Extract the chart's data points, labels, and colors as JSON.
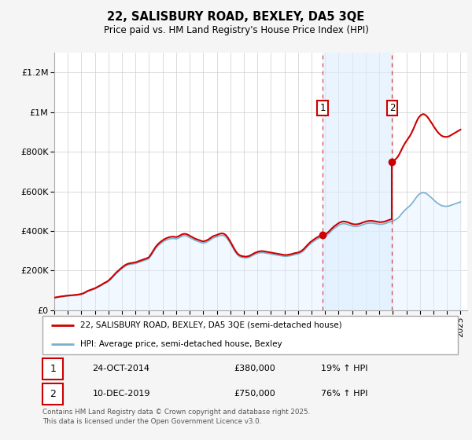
{
  "title": "22, SALISBURY ROAD, BEXLEY, DA5 3QE",
  "subtitle": "Price paid vs. HM Land Registry's House Price Index (HPI)",
  "background_color": "#f5f5f5",
  "plot_background_color": "#ffffff",
  "grid_color": "#cccccc",
  "ylim": [
    0,
    1300000
  ],
  "xlim_start": 1995.0,
  "xlim_end": 2025.5,
  "yticks": [
    0,
    200000,
    400000,
    600000,
    800000,
    1000000,
    1200000
  ],
  "ytick_labels": [
    "£0",
    "£200K",
    "£400K",
    "£600K",
    "£800K",
    "£1M",
    "£1.2M"
  ],
  "xtick_years": [
    1995,
    1996,
    1997,
    1998,
    1999,
    2000,
    2001,
    2002,
    2003,
    2004,
    2005,
    2006,
    2007,
    2008,
    2009,
    2010,
    2011,
    2012,
    2013,
    2014,
    2015,
    2016,
    2017,
    2018,
    2019,
    2020,
    2021,
    2022,
    2023,
    2024,
    2025
  ],
  "sale1_date": 2014.82,
  "sale1_price": 380000,
  "sale2_date": 2019.95,
  "sale2_price": 750000,
  "sale1_date_str": "24-OCT-2014",
  "sale2_date_str": "10-DEC-2019",
  "sale1_price_str": "£380,000",
  "sale2_price_str": "£750,000",
  "sale1_hpi_pct": "19% ↑ HPI",
  "sale2_hpi_pct": "76% ↑ HPI",
  "red_color": "#cc0000",
  "blue_color": "#7aafcf",
  "blue_fill_color": "#ddeeff",
  "legend_label1": "22, SALISBURY ROAD, BEXLEY, DA5 3QE (semi-detached house)",
  "legend_label2": "HPI: Average price, semi-detached house, Bexley",
  "footer_text": "Contains HM Land Registry data © Crown copyright and database right 2025.\nThis data is licensed under the Open Government Licence v3.0.",
  "hpi_monthly_years": [
    1995.0,
    1995.083,
    1995.167,
    1995.25,
    1995.333,
    1995.417,
    1995.5,
    1995.583,
    1995.667,
    1995.75,
    1995.833,
    1995.917,
    1996.0,
    1996.083,
    1996.167,
    1996.25,
    1996.333,
    1996.417,
    1996.5,
    1996.583,
    1996.667,
    1996.75,
    1996.833,
    1996.917,
    1997.0,
    1997.083,
    1997.167,
    1997.25,
    1997.333,
    1997.417,
    1997.5,
    1997.583,
    1997.667,
    1997.75,
    1997.833,
    1997.917,
    1998.0,
    1998.083,
    1998.167,
    1998.25,
    1998.333,
    1998.417,
    1998.5,
    1998.583,
    1998.667,
    1998.75,
    1998.833,
    1998.917,
    1999.0,
    1999.083,
    1999.167,
    1999.25,
    1999.333,
    1999.417,
    1999.5,
    1999.583,
    1999.667,
    1999.75,
    1999.833,
    1999.917,
    2000.0,
    2000.083,
    2000.167,
    2000.25,
    2000.333,
    2000.417,
    2000.5,
    2000.583,
    2000.667,
    2000.75,
    2000.833,
    2000.917,
    2001.0,
    2001.083,
    2001.167,
    2001.25,
    2001.333,
    2001.417,
    2001.5,
    2001.583,
    2001.667,
    2001.75,
    2001.833,
    2001.917,
    2002.0,
    2002.083,
    2002.167,
    2002.25,
    2002.333,
    2002.417,
    2002.5,
    2002.583,
    2002.667,
    2002.75,
    2002.833,
    2002.917,
    2003.0,
    2003.083,
    2003.167,
    2003.25,
    2003.333,
    2003.417,
    2003.5,
    2003.583,
    2003.667,
    2003.75,
    2003.833,
    2003.917,
    2004.0,
    2004.083,
    2004.167,
    2004.25,
    2004.333,
    2004.417,
    2004.5,
    2004.583,
    2004.667,
    2004.75,
    2004.833,
    2004.917,
    2005.0,
    2005.083,
    2005.167,
    2005.25,
    2005.333,
    2005.417,
    2005.5,
    2005.583,
    2005.667,
    2005.75,
    2005.833,
    2005.917,
    2006.0,
    2006.083,
    2006.167,
    2006.25,
    2006.333,
    2006.417,
    2006.5,
    2006.583,
    2006.667,
    2006.75,
    2006.833,
    2006.917,
    2007.0,
    2007.083,
    2007.167,
    2007.25,
    2007.333,
    2007.417,
    2007.5,
    2007.583,
    2007.667,
    2007.75,
    2007.833,
    2007.917,
    2008.0,
    2008.083,
    2008.167,
    2008.25,
    2008.333,
    2008.417,
    2008.5,
    2008.583,
    2008.667,
    2008.75,
    2008.833,
    2008.917,
    2009.0,
    2009.083,
    2009.167,
    2009.25,
    2009.333,
    2009.417,
    2009.5,
    2009.583,
    2009.667,
    2009.75,
    2009.833,
    2009.917,
    2010.0,
    2010.083,
    2010.167,
    2010.25,
    2010.333,
    2010.417,
    2010.5,
    2010.583,
    2010.667,
    2010.75,
    2010.833,
    2010.917,
    2011.0,
    2011.083,
    2011.167,
    2011.25,
    2011.333,
    2011.417,
    2011.5,
    2011.583,
    2011.667,
    2011.75,
    2011.833,
    2011.917,
    2012.0,
    2012.083,
    2012.167,
    2012.25,
    2012.333,
    2012.417,
    2012.5,
    2012.583,
    2012.667,
    2012.75,
    2012.833,
    2012.917,
    2013.0,
    2013.083,
    2013.167,
    2013.25,
    2013.333,
    2013.417,
    2013.5,
    2013.583,
    2013.667,
    2013.75,
    2013.833,
    2013.917,
    2014.0,
    2014.083,
    2014.167,
    2014.25,
    2014.333,
    2014.417,
    2014.5,
    2014.583,
    2014.667,
    2014.75,
    2014.833,
    2014.917,
    2015.0,
    2015.083,
    2015.167,
    2015.25,
    2015.333,
    2015.417,
    2015.5,
    2015.583,
    2015.667,
    2015.75,
    2015.833,
    2015.917,
    2016.0,
    2016.083,
    2016.167,
    2016.25,
    2016.333,
    2016.417,
    2016.5,
    2016.583,
    2016.667,
    2016.75,
    2016.833,
    2016.917,
    2017.0,
    2017.083,
    2017.167,
    2017.25,
    2017.333,
    2017.417,
    2017.5,
    2017.583,
    2017.667,
    2017.75,
    2017.833,
    2017.917,
    2018.0,
    2018.083,
    2018.167,
    2018.25,
    2018.333,
    2018.417,
    2018.5,
    2018.583,
    2018.667,
    2018.75,
    2018.833,
    2018.917,
    2019.0,
    2019.083,
    2019.167,
    2019.25,
    2019.333,
    2019.417,
    2019.5,
    2019.583,
    2019.667,
    2019.75,
    2019.833,
    2019.917,
    2020.0,
    2020.083,
    2020.167,
    2020.25,
    2020.333,
    2020.417,
    2020.5,
    2020.583,
    2020.667,
    2020.75,
    2020.833,
    2020.917,
    2021.0,
    2021.083,
    2021.167,
    2021.25,
    2021.333,
    2021.417,
    2021.5,
    2021.583,
    2021.667,
    2021.75,
    2021.833,
    2021.917,
    2022.0,
    2022.083,
    2022.167,
    2022.25,
    2022.333,
    2022.417,
    2022.5,
    2022.583,
    2022.667,
    2022.75,
    2022.833,
    2022.917,
    2023.0,
    2023.083,
    2023.167,
    2023.25,
    2023.333,
    2023.417,
    2023.5,
    2023.583,
    2023.667,
    2023.75,
    2023.833,
    2023.917,
    2024.0,
    2024.083,
    2024.167,
    2024.25,
    2024.333,
    2024.417,
    2024.5,
    2024.583,
    2024.667,
    2024.75,
    2024.833,
    2024.917,
    2025.0
  ],
  "hpi_monthly_values": [
    62000,
    63000,
    64000,
    65000,
    66000,
    67000,
    68000,
    68500,
    69000,
    70000,
    71000,
    71500,
    72000,
    72500,
    73000,
    73500,
    74000,
    74500,
    75000,
    75500,
    76000,
    77000,
    78000,
    79000,
    80000,
    82000,
    84000,
    87000,
    90000,
    93000,
    96000,
    98000,
    100000,
    102000,
    104000,
    106000,
    108000,
    111000,
    114000,
    117000,
    120000,
    123000,
    126000,
    130000,
    133000,
    136000,
    139000,
    142000,
    146000,
    151000,
    156000,
    162000,
    168000,
    174000,
    180000,
    186000,
    191000,
    196000,
    201000,
    206000,
    210000,
    215000,
    219000,
    223000,
    226000,
    228000,
    230000,
    231000,
    232000,
    233000,
    234000,
    235000,
    236000,
    238000,
    240000,
    242000,
    244000,
    246000,
    248000,
    250000,
    252000,
    254000,
    256000,
    258000,
    262000,
    270000,
    278000,
    287000,
    296000,
    305000,
    313000,
    320000,
    326000,
    331000,
    336000,
    340000,
    344000,
    348000,
    351000,
    354000,
    356000,
    358000,
    360000,
    361000,
    362000,
    362000,
    362000,
    361000,
    360000,
    362000,
    364000,
    367000,
    370000,
    373000,
    375000,
    376000,
    376000,
    375000,
    373000,
    370000,
    367000,
    364000,
    361000,
    358000,
    355000,
    352000,
    350000,
    348000,
    346000,
    344000,
    342000,
    340000,
    339000,
    340000,
    342000,
    344000,
    347000,
    350000,
    354000,
    358000,
    362000,
    365000,
    367000,
    369000,
    370000,
    373000,
    375000,
    377000,
    378000,
    378000,
    377000,
    374000,
    370000,
    364000,
    356000,
    347000,
    338000,
    328000,
    318000,
    308000,
    298000,
    289000,
    282000,
    276000,
    272000,
    269000,
    267000,
    266000,
    265000,
    264000,
    264000,
    265000,
    266000,
    268000,
    271000,
    274000,
    277000,
    280000,
    283000,
    285000,
    287000,
    289000,
    290000,
    291000,
    291000,
    291000,
    290000,
    289000,
    288000,
    287000,
    286000,
    285000,
    284000,
    283000,
    282000,
    281000,
    280000,
    279000,
    278000,
    277000,
    276000,
    275000,
    274000,
    273000,
    272000,
    272000,
    272000,
    273000,
    274000,
    275000,
    276000,
    278000,
    279000,
    281000,
    282000,
    283000,
    284000,
    286000,
    289000,
    292000,
    296000,
    301000,
    307000,
    313000,
    319000,
    325000,
    330000,
    336000,
    340000,
    344000,
    348000,
    352000,
    356000,
    359000,
    362000,
    365000,
    367000,
    369000,
    371000,
    372000,
    374000,
    377000,
    381000,
    386000,
    391000,
    397000,
    403000,
    408000,
    413000,
    417000,
    421000,
    425000,
    429000,
    432000,
    434000,
    436000,
    437000,
    437000,
    436000,
    435000,
    433000,
    431000,
    429000,
    427000,
    425000,
    424000,
    423000,
    423000,
    423000,
    424000,
    425000,
    427000,
    429000,
    431000,
    433000,
    435000,
    437000,
    438000,
    439000,
    440000,
    440000,
    440000,
    440000,
    439000,
    438000,
    437000,
    436000,
    435000,
    434000,
    434000,
    434000,
    435000,
    436000,
    437000,
    439000,
    441000,
    443000,
    445000,
    447000,
    449000,
    451000,
    453000,
    456000,
    459000,
    463000,
    468000,
    474000,
    481000,
    488000,
    495000,
    501000,
    507000,
    512000,
    517000,
    522000,
    527000,
    533000,
    540000,
    547000,
    555000,
    563000,
    571000,
    578000,
    584000,
    588000,
    591000,
    593000,
    594000,
    593000,
    591000,
    588000,
    584000,
    579000,
    574000,
    569000,
    564000,
    558000,
    553000,
    548000,
    543000,
    539000,
    535000,
    532000,
    529000,
    527000,
    526000,
    525000,
    525000,
    525000,
    526000,
    527000,
    529000,
    531000,
    533000,
    535000,
    537000,
    539000,
    541000,
    543000,
    545000,
    547000
  ]
}
